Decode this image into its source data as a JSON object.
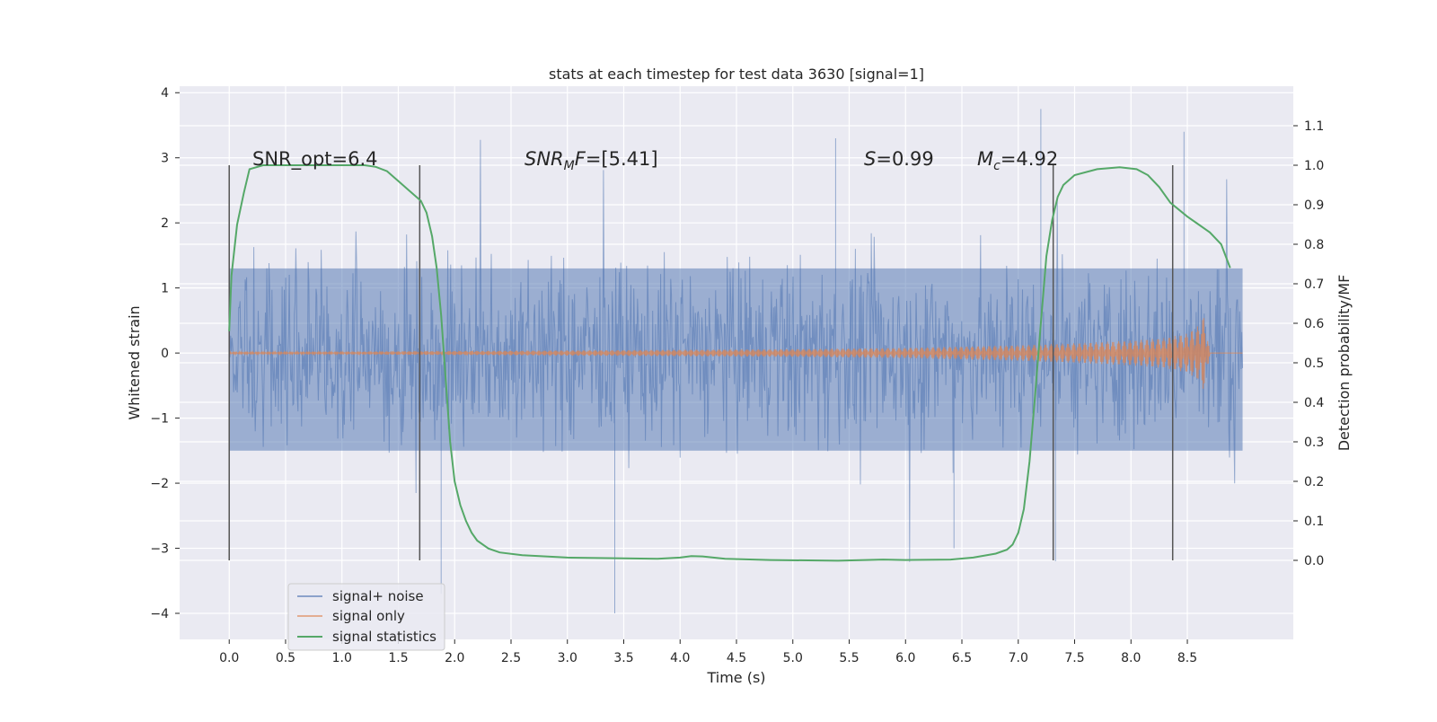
{
  "chart_data": {
    "type": "line",
    "title": "stats at each timestep for test data 3630 [signal=1]",
    "xlabel": "Time (s)",
    "ylabel": "Whitened strain",
    "ylabel_right": "Detection probability/MF",
    "xlim": [
      -0.44,
      9.44
    ],
    "ylim": [
      -4.4,
      4.1
    ],
    "ylim_right": [
      -0.2,
      1.2
    ],
    "x_ticks": [
      "0.0",
      "0.5",
      "1.0",
      "1.5",
      "2.0",
      "2.5",
      "3.0",
      "3.5",
      "4.0",
      "4.5",
      "5.0",
      "5.5",
      "6.0",
      "6.5",
      "7.0",
      "7.5",
      "8.0",
      "8.5"
    ],
    "y_ticks": [
      "4",
      "3",
      "2",
      "1",
      "0",
      "−1",
      "−2",
      "−3",
      "−4"
    ],
    "y_ticks_right": [
      "0.0",
      "0.1",
      "0.2",
      "0.3",
      "0.4",
      "0.5",
      "0.6",
      "0.7",
      "0.8",
      "0.9",
      "1.0",
      "1.1"
    ],
    "grid": true,
    "legend_position": "lower-left",
    "annotations": {
      "snr_opt": "SNR_opt=6.4",
      "snr_mf_sym": "SNR",
      "snr_mf_sub": "M",
      "snr_mf_tail": "F",
      "snr_mf_value": "=[5.41]",
      "s_sym": "S",
      "s_value": "=0.99",
      "mc_sym": "M",
      "mc_sub": "c",
      "mc_value": "=4.92"
    },
    "vertical_markers_x": [
      0.0,
      1.69,
      7.31,
      8.37
    ],
    "series": [
      {
        "name": "signal+ noise",
        "color": "#4c72b0",
        "kind": "noisy-strain",
        "x_range": [
          0.0,
          8.99
        ],
        "envelope": [
          -1.5,
          1.3
        ],
        "peaks": [
          [
            1.88,
            -3.7
          ],
          [
            3.42,
            -4.0
          ],
          [
            6.43,
            -3.0
          ],
          [
            7.2,
            3.75
          ],
          [
            5.38,
            3.3
          ],
          [
            8.47,
            3.4
          ],
          [
            7.33,
            -3.2
          ]
        ]
      },
      {
        "name": "signal only",
        "color": "#dd8452",
        "kind": "chirp",
        "x": [
          0.0,
          1.0,
          2.0,
          3.0,
          4.0,
          5.0,
          6.0,
          7.0,
          7.5,
          8.0,
          8.3,
          8.5,
          8.6,
          8.65,
          8.7,
          9.0
        ],
        "amplitude": [
          0.02,
          0.02,
          0.03,
          0.04,
          0.05,
          0.06,
          0.08,
          0.12,
          0.15,
          0.19,
          0.23,
          0.3,
          0.42,
          0.58,
          0.0,
          0.0
        ]
      },
      {
        "name": "signal statistics",
        "color": "#55a868",
        "kind": "probability",
        "axis": "right",
        "x": [
          0.0,
          0.02,
          0.07,
          0.13,
          0.18,
          0.3,
          0.5,
          0.8,
          1.0,
          1.2,
          1.3,
          1.4,
          1.5,
          1.6,
          1.7,
          1.75,
          1.8,
          1.84,
          1.88,
          1.92,
          1.96,
          2.0,
          2.05,
          2.1,
          2.15,
          2.2,
          2.3,
          2.4,
          2.6,
          3.0,
          3.5,
          3.8,
          4.0,
          4.1,
          4.2,
          4.4,
          4.8,
          5.4,
          5.8,
          6.0,
          6.4,
          6.6,
          6.8,
          6.9,
          6.95,
          7.0,
          7.05,
          7.1,
          7.15,
          7.2,
          7.25,
          7.3,
          7.35,
          7.4,
          7.5,
          7.7,
          7.9,
          8.05,
          8.15,
          8.25,
          8.35,
          8.5,
          8.6,
          8.7,
          8.8,
          8.88
        ],
        "y": [
          0.58,
          0.72,
          0.85,
          0.93,
          0.99,
          1.0,
          1.0,
          1.0,
          1.0,
          1.0,
          0.996,
          0.985,
          0.96,
          0.935,
          0.91,
          0.88,
          0.82,
          0.74,
          0.62,
          0.46,
          0.3,
          0.2,
          0.14,
          0.1,
          0.07,
          0.05,
          0.03,
          0.02,
          0.013,
          0.007,
          0.005,
          0.004,
          0.007,
          0.011,
          0.01,
          0.004,
          0.001,
          -0.001,
          0.002,
          0.001,
          0.002,
          0.007,
          0.017,
          0.027,
          0.04,
          0.07,
          0.13,
          0.25,
          0.42,
          0.6,
          0.77,
          0.86,
          0.92,
          0.95,
          0.975,
          0.99,
          0.995,
          0.99,
          0.975,
          0.945,
          0.905,
          0.87,
          0.85,
          0.83,
          0.8,
          0.74
        ]
      }
    ]
  }
}
